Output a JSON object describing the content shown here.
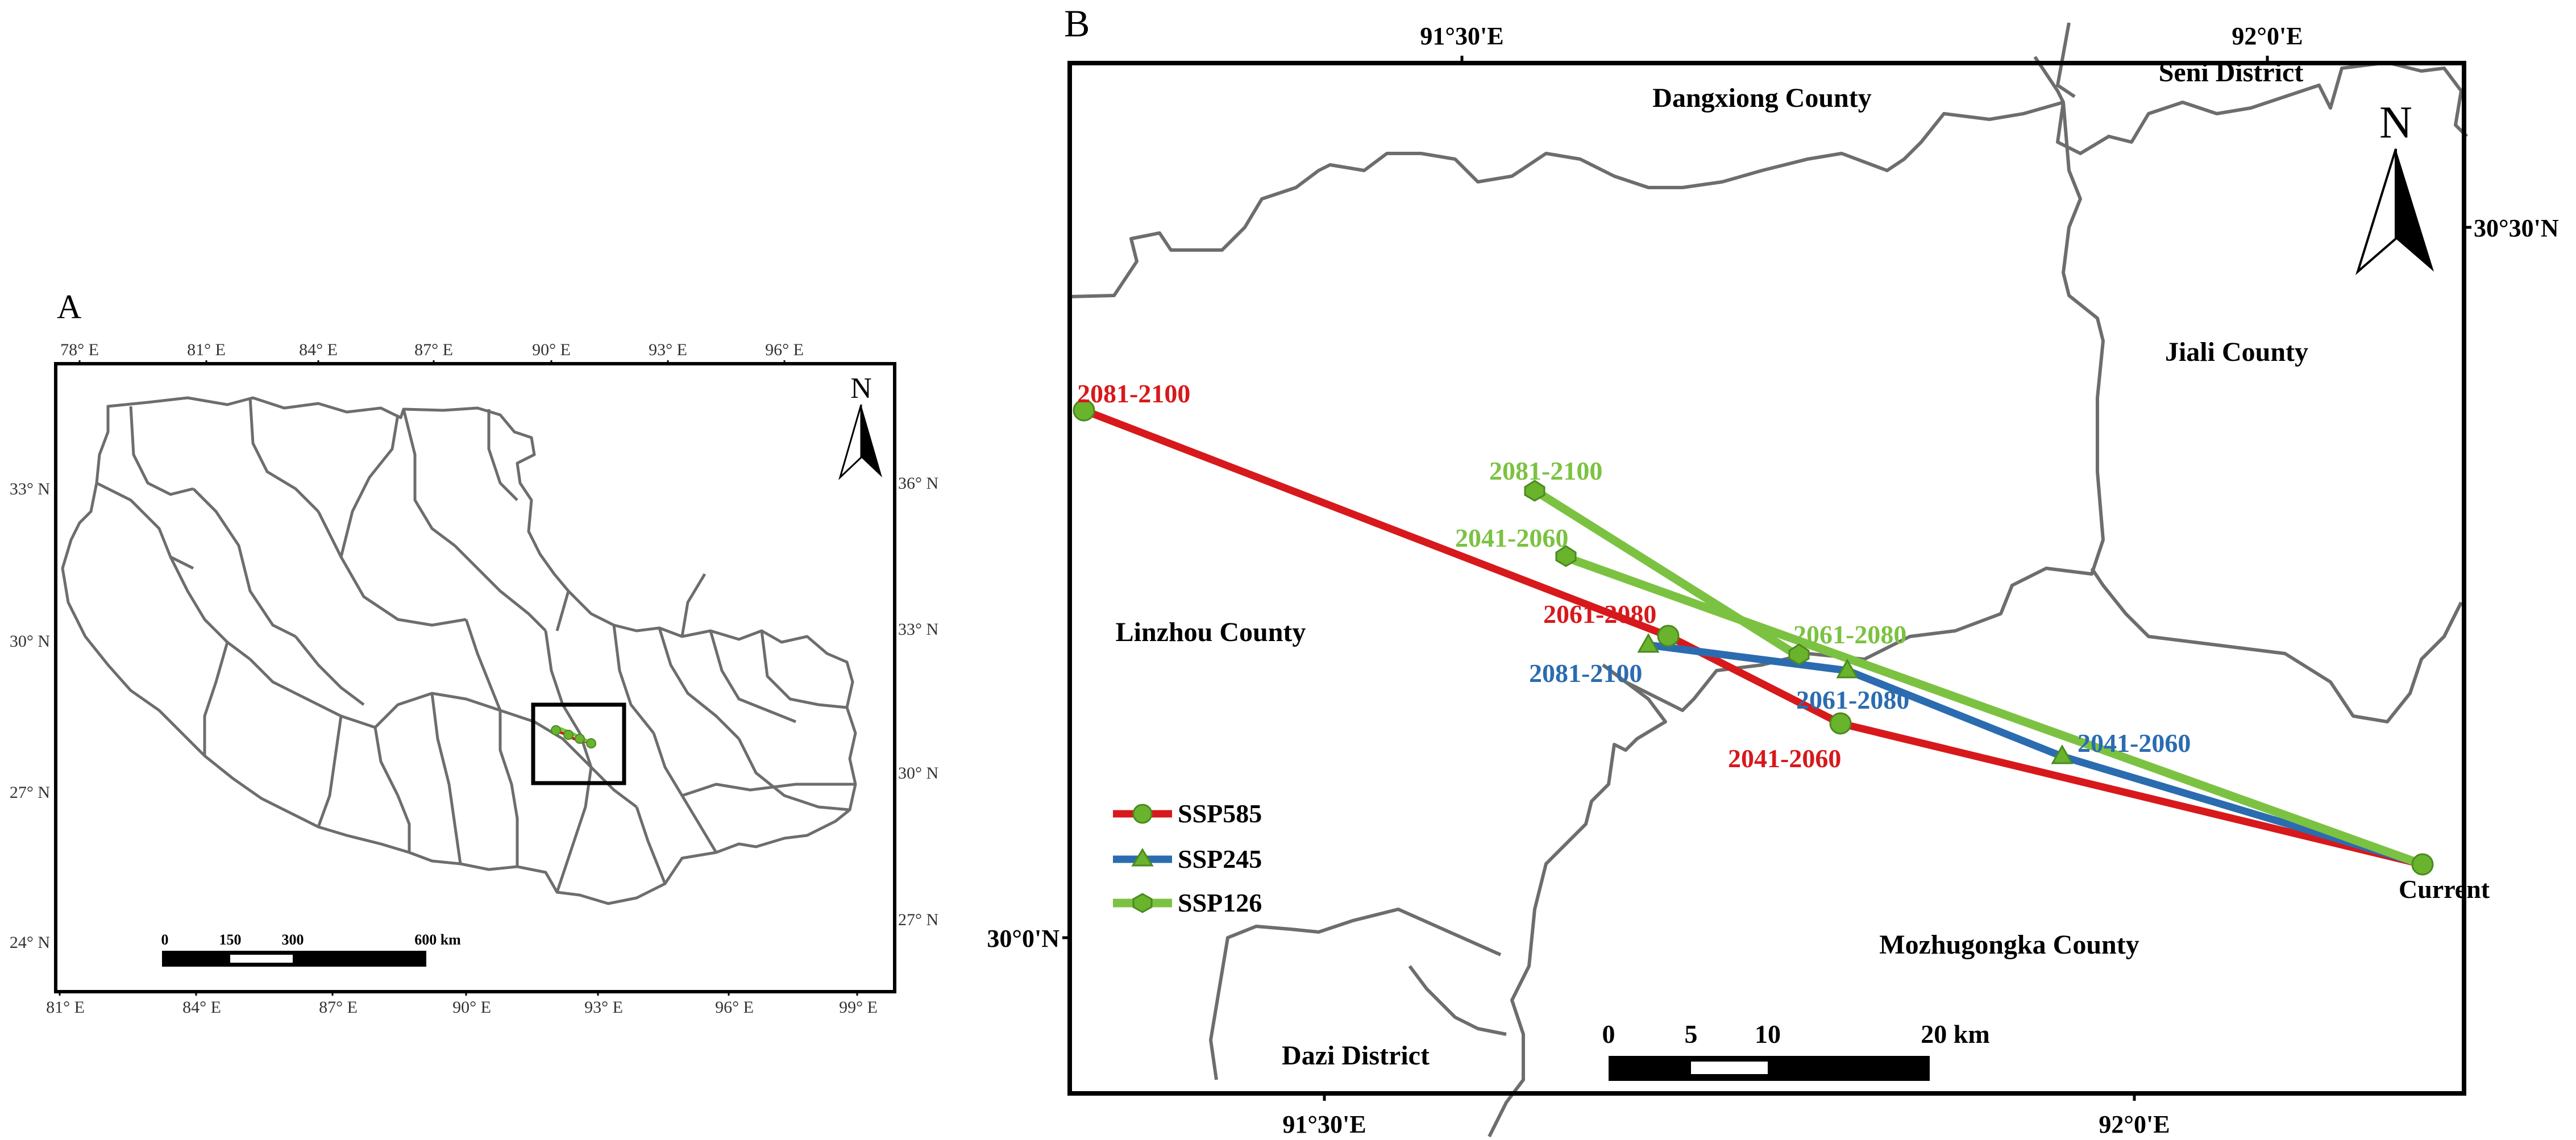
{
  "panels": {
    "a": {
      "letter": "A",
      "top_ticks": [
        "78° E",
        "81° E",
        "84° E",
        "87° E",
        "90° E",
        "93° E",
        "96° E"
      ],
      "bottom_ticks": [
        "81° E",
        "84° E",
        "87° E",
        "90° E",
        "93° E",
        "96° E",
        "99° E"
      ],
      "left_ticks": [
        "33° N",
        "30° N",
        "27° N",
        "24° N"
      ],
      "right_ticks": [
        "36° N",
        "33° N",
        "30° N",
        "27° N"
      ],
      "scale_labels": [
        "0",
        "150",
        "300",
        "600 km"
      ],
      "north_label": "N"
    },
    "b": {
      "letter": "B",
      "top_ticks": [
        "91°30'E",
        "92°0'E"
      ],
      "bottom_ticks": [
        "91°30'E",
        "92°0'E"
      ],
      "right_ticks": [
        "30°30'N"
      ],
      "left_ticks": [
        "30°0'N"
      ],
      "north_label": "N",
      "scale_labels": [
        "0",
        "5",
        "10",
        "20 km"
      ],
      "counties": {
        "dangxiong": "Dangxiong County",
        "seni": "Seni District",
        "jiali": "Jiali County",
        "linzhou": "Linzhou County",
        "mozhugongka": "Mozhugongka County",
        "dazi": "Dazi District"
      },
      "point_labels": {
        "current": "Current",
        "ssp585": [
          "2041-2060",
          "2061-2080",
          "2081-2100"
        ],
        "ssp245": [
          "2041-2060",
          "2061-2080",
          "2081-2100"
        ],
        "ssp126": [
          "2041-2060",
          "2061-2080",
          "2081-2100"
        ]
      },
      "legend": [
        "SSP585",
        "SSP245",
        "SSP126"
      ]
    }
  },
  "colors": {
    "ssp585": "#d7191c",
    "ssp245": "#2b6cb0",
    "ssp126": "#7cc242",
    "marker": "#6ab42d",
    "boundary": "#6d6d6d"
  }
}
